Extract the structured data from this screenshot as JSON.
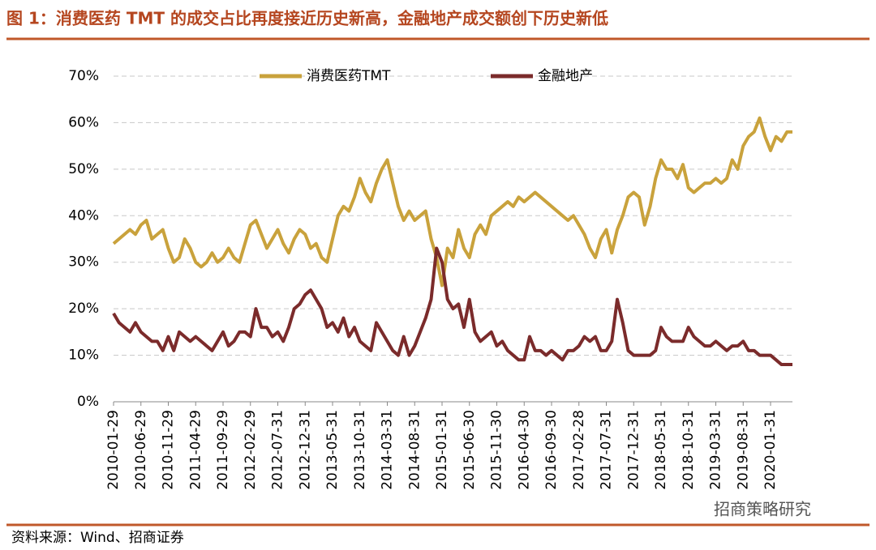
{
  "chart_data": {
    "type": "line",
    "title": "图 1：消费医药 TMT 的成交占比再度接近历史新高，金融地产成交额创下历史新低",
    "categories": [
      "2010-01-29",
      null,
      null,
      null,
      null,
      "2010-06-29",
      null,
      null,
      null,
      null,
      "2010-11-29",
      null,
      null,
      null,
      null,
      "2011-04-29",
      null,
      null,
      null,
      null,
      "2011-09-29",
      null,
      null,
      null,
      null,
      "2012-02-29",
      null,
      null,
      null,
      null,
      "2012-07-31",
      null,
      null,
      null,
      null,
      "2012-12-31",
      null,
      null,
      null,
      null,
      "2013-05-31",
      null,
      null,
      null,
      null,
      "2013-10-31",
      null,
      null,
      null,
      null,
      "2014-03-31",
      null,
      null,
      null,
      null,
      "2014-08-31",
      null,
      null,
      null,
      null,
      "2015-01-31",
      null,
      null,
      null,
      null,
      "2015-06-30",
      null,
      null,
      null,
      null,
      "2015-11-30",
      null,
      null,
      null,
      null,
      "2016-04-30",
      null,
      null,
      null,
      null,
      "2016-09-30",
      null,
      null,
      null,
      null,
      "2017-02-28",
      null,
      null,
      null,
      null,
      "2017-07-31",
      null,
      null,
      null,
      null,
      "2017-12-31",
      null,
      null,
      null,
      null,
      "2018-05-31",
      null,
      null,
      null,
      null,
      "2018-10-31",
      null,
      null,
      null,
      null,
      "2019-03-31",
      null,
      null,
      null,
      null,
      "2019-08-31",
      null,
      null,
      null,
      null,
      "2020-01-31",
      null,
      null,
      null,
      null
    ],
    "series": [
      {
        "name": "消费医药TMT",
        "color": "#c9a23c",
        "values": [
          34,
          35,
          36,
          37,
          36,
          38,
          39,
          35,
          36,
          37,
          33,
          30,
          31,
          35,
          33,
          30,
          29,
          30,
          32,
          30,
          31,
          33,
          31,
          30,
          34,
          38,
          39,
          36,
          33,
          35,
          37,
          34,
          32,
          35,
          37,
          36,
          33,
          34,
          31,
          30,
          35,
          40,
          42,
          41,
          44,
          48,
          45,
          43,
          47,
          50,
          52,
          47,
          42,
          39,
          41,
          39,
          40,
          41,
          35,
          31,
          25,
          33,
          31,
          37,
          33,
          31,
          36,
          38,
          36,
          40,
          41,
          42,
          43,
          42,
          44,
          43,
          44,
          45,
          44,
          43,
          42,
          41,
          40,
          39,
          40,
          38,
          36,
          33,
          31,
          35,
          37,
          32,
          37,
          40,
          44,
          45,
          44,
          38,
          42,
          48,
          52,
          50,
          50,
          48,
          51,
          46,
          45,
          46,
          47,
          47,
          48,
          47,
          48,
          52,
          50,
          55,
          57,
          58,
          61,
          57,
          54,
          57,
          56,
          58,
          58
        ]
      },
      {
        "name": "金融地产",
        "color": "#7b2b2b",
        "values": [
          19,
          17,
          16,
          15,
          17,
          15,
          14,
          13,
          13,
          11,
          14,
          11,
          15,
          14,
          13,
          14,
          13,
          12,
          11,
          13,
          15,
          12,
          13,
          15,
          15,
          14,
          20,
          16,
          16,
          14,
          15,
          13,
          16,
          20,
          21,
          23,
          24,
          22,
          20,
          16,
          17,
          15,
          18,
          14,
          16,
          13,
          12,
          11,
          17,
          15,
          13,
          11,
          10,
          14,
          10,
          12,
          15,
          18,
          22,
          33,
          30,
          22,
          20,
          21,
          16,
          22,
          15,
          13,
          14,
          15,
          12,
          13,
          11,
          10,
          9,
          9,
          14,
          11,
          11,
          10,
          11,
          10,
          9,
          11,
          11,
          12,
          14,
          13,
          14,
          11,
          11,
          13,
          22,
          17,
          11,
          10,
          10,
          10,
          10,
          11,
          16,
          14,
          13,
          13,
          13,
          16,
          14,
          13,
          12,
          12,
          13,
          12,
          11,
          12,
          12,
          13,
          11,
          11,
          10,
          10,
          10,
          9,
          8,
          8,
          8
        ]
      }
    ],
    "ylim": [
      0,
      70
    ],
    "yticks": [
      {
        "value": 0,
        "label": "0%"
      },
      {
        "value": 10,
        "label": "10%"
      },
      {
        "value": 20,
        "label": "20%"
      },
      {
        "value": 30,
        "label": "30%"
      },
      {
        "value": 40,
        "label": "40%"
      },
      {
        "value": 50,
        "label": "50%"
      },
      {
        "value": 60,
        "label": "60%"
      },
      {
        "value": 70,
        "label": "70%"
      }
    ],
    "grid": true
  },
  "footer": {
    "source": "资料来源：Wind、招商证券",
    "watermark": "招商策略研究"
  }
}
